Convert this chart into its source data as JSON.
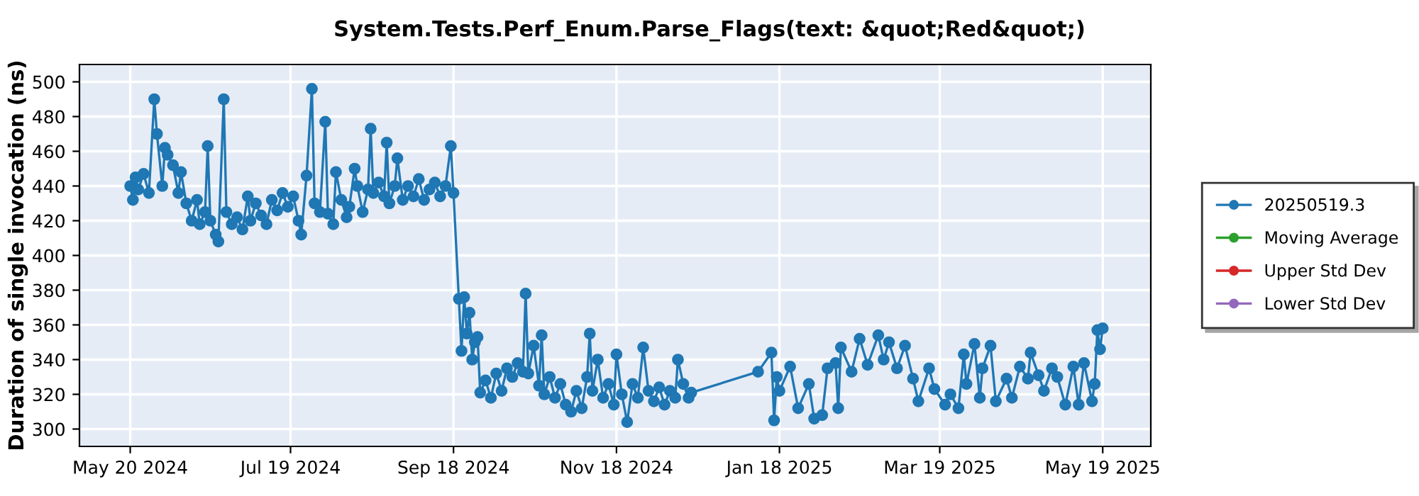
{
  "chart_data": {
    "type": "line",
    "title": "System.Tests.Perf_Enum.Parse_Flags(text: &quot;Red&quot;)",
    "ylabel": "Duration of single invocation (ns)",
    "xlim": [
      "2024-05-01",
      "2025-06-06"
    ],
    "ylim": [
      290,
      510
    ],
    "xticks": [
      {
        "value": "2024-05-20",
        "label": "May 20 2024"
      },
      {
        "value": "2024-07-19",
        "label": "Jul 19 2024"
      },
      {
        "value": "2024-09-18",
        "label": "Sep 18 2024"
      },
      {
        "value": "2024-11-18",
        "label": "Nov 18 2024"
      },
      {
        "value": "2025-01-18",
        "label": "Jan 18 2025"
      },
      {
        "value": "2025-03-19",
        "label": "Mar 19 2025"
      },
      {
        "value": "2025-05-19",
        "label": "May 19 2025"
      }
    ],
    "yticks": [
      300,
      320,
      340,
      360,
      380,
      400,
      420,
      440,
      460,
      480,
      500
    ],
    "grid": true,
    "legend": "right",
    "marker": "circle",
    "line_style": "solid",
    "series": [
      {
        "name": "20250519.3",
        "color": "#1f77b4",
        "x": [
          "2024-05-20",
          "2024-05-21",
          "2024-05-22",
          "2024-05-23",
          "2024-05-25",
          "2024-05-27",
          "2024-05-29",
          "2024-05-30",
          "2024-06-01",
          "2024-06-02",
          "2024-06-03",
          "2024-06-05",
          "2024-06-07",
          "2024-06-08",
          "2024-06-10",
          "2024-06-12",
          "2024-06-14",
          "2024-06-15",
          "2024-06-17",
          "2024-06-18",
          "2024-06-19",
          "2024-06-21",
          "2024-06-22",
          "2024-06-24",
          "2024-06-25",
          "2024-06-27",
          "2024-06-29",
          "2024-07-01",
          "2024-07-03",
          "2024-07-04",
          "2024-07-06",
          "2024-07-08",
          "2024-07-10",
          "2024-07-12",
          "2024-07-14",
          "2024-07-16",
          "2024-07-18",
          "2024-07-20",
          "2024-07-22",
          "2024-07-23",
          "2024-07-25",
          "2024-07-27",
          "2024-07-28",
          "2024-07-30",
          "2024-08-01",
          "2024-08-02",
          "2024-08-04",
          "2024-08-05",
          "2024-08-07",
          "2024-08-09",
          "2024-08-10",
          "2024-08-12",
          "2024-08-13",
          "2024-08-15",
          "2024-08-17",
          "2024-08-18",
          "2024-08-19",
          "2024-08-21",
          "2024-08-23",
          "2024-08-24",
          "2024-08-25",
          "2024-08-27",
          "2024-08-28",
          "2024-08-30",
          "2024-09-01",
          "2024-09-03",
          "2024-09-05",
          "2024-09-07",
          "2024-09-09",
          "2024-09-11",
          "2024-09-13",
          "2024-09-15",
          "2024-09-17",
          "2024-09-18",
          "2024-09-20",
          "2024-09-21",
          "2024-09-22",
          "2024-09-23",
          "2024-09-24",
          "2024-09-25",
          "2024-09-26",
          "2024-09-27",
          "2024-09-28",
          "2024-09-30",
          "2024-10-02",
          "2024-10-04",
          "2024-10-06",
          "2024-10-08",
          "2024-10-10",
          "2024-10-12",
          "2024-10-14",
          "2024-10-15",
          "2024-10-16",
          "2024-10-18",
          "2024-10-20",
          "2024-10-21",
          "2024-10-22",
          "2024-10-24",
          "2024-10-26",
          "2024-10-28",
          "2024-10-30",
          "2024-11-01",
          "2024-11-03",
          "2024-11-05",
          "2024-11-07",
          "2024-11-08",
          "2024-11-09",
          "2024-11-11",
          "2024-11-13",
          "2024-11-15",
          "2024-11-17",
          "2024-11-18",
          "2024-11-20",
          "2024-11-22",
          "2024-11-24",
          "2024-11-26",
          "2024-11-28",
          "2024-11-30",
          "2024-12-02",
          "2024-12-04",
          "2024-12-06",
          "2024-12-08",
          "2024-12-10",
          "2024-12-11",
          "2024-12-13",
          "2024-12-15",
          "2024-12-16",
          "2025-01-10",
          "2025-01-15",
          "2025-01-16",
          "2025-01-17",
          "2025-01-18",
          "2025-01-22",
          "2025-01-25",
          "2025-01-29",
          "2025-01-31",
          "2025-02-03",
          "2025-02-05",
          "2025-02-08",
          "2025-02-09",
          "2025-02-10",
          "2025-02-14",
          "2025-02-17",
          "2025-02-20",
          "2025-02-24",
          "2025-02-26",
          "2025-02-28",
          "2025-03-03",
          "2025-03-06",
          "2025-03-09",
          "2025-03-11",
          "2025-03-15",
          "2025-03-17",
          "2025-03-21",
          "2025-03-23",
          "2025-03-26",
          "2025-03-28",
          "2025-03-29",
          "2025-04-01",
          "2025-04-03",
          "2025-04-04",
          "2025-04-07",
          "2025-04-09",
          "2025-04-13",
          "2025-04-15",
          "2025-04-18",
          "2025-04-21",
          "2025-04-22",
          "2025-04-25",
          "2025-04-27",
          "2025-04-30",
          "2025-05-02",
          "2025-05-05",
          "2025-05-08",
          "2025-05-10",
          "2025-05-12",
          "2025-05-15",
          "2025-05-16",
          "2025-05-17",
          "2025-05-18",
          "2025-05-19"
        ],
        "values": [
          440,
          432,
          445,
          438,
          447,
          436,
          490,
          470,
          440,
          462,
          458,
          452,
          436,
          448,
          430,
          420,
          432,
          418,
          425,
          463,
          420,
          412,
          408,
          490,
          425,
          418,
          422,
          415,
          434,
          420,
          430,
          423,
          418,
          432,
          426,
          436,
          428,
          434,
          420,
          412,
          446,
          496,
          430,
          425,
          477,
          424,
          418,
          448,
          432,
          422,
          428,
          450,
          440,
          425,
          438,
          473,
          436,
          442,
          434,
          465,
          430,
          440,
          456,
          432,
          440,
          434,
          444,
          432,
          438,
          442,
          434,
          440,
          463,
          436,
          375,
          345,
          376,
          355,
          367,
          340,
          350,
          353,
          321,
          328,
          318,
          332,
          322,
          335,
          330,
          338,
          333,
          378,
          332,
          348,
          325,
          354,
          320,
          330,
          318,
          326,
          314,
          310,
          322,
          312,
          330,
          355,
          322,
          340,
          318,
          326,
          314,
          343,
          320,
          304,
          326,
          318,
          347,
          322,
          316,
          324,
          314,
          322,
          318,
          340,
          326,
          318,
          321,
          333,
          344,
          305,
          330,
          322,
          336,
          312,
          326,
          306,
          308,
          335,
          338,
          312,
          347,
          333,
          352,
          337,
          354,
          340,
          350,
          335,
          348,
          329,
          316,
          335,
          323,
          314,
          320,
          312,
          343,
          326,
          349,
          318,
          335,
          348,
          316,
          329,
          318,
          336,
          329,
          344,
          331,
          322,
          335,
          330,
          314,
          336,
          314,
          338,
          316,
          326,
          357,
          346,
          358
        ]
      },
      {
        "name": "Moving Average",
        "color": "#2ca02c"
      },
      {
        "name": "Upper Std Dev",
        "color": "#d62728"
      },
      {
        "name": "Lower Std Dev",
        "color": "#9467bd"
      }
    ]
  }
}
